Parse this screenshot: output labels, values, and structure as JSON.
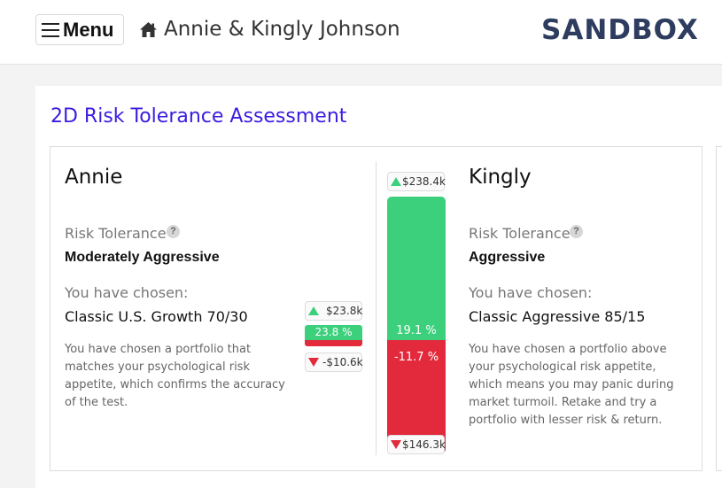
{
  "header": {
    "menu_label": "Menu",
    "client_name": "Annie & Kingly Johnson",
    "logo": "SANDBOX"
  },
  "page": {
    "title": "2D Risk Tolerance Assessment"
  },
  "persons": [
    {
      "name": "Annie",
      "risk_label": "Risk Tolerance",
      "risk_value": "Moderately Aggressive",
      "chosen_label": "You have chosen:",
      "portfolio": "Classic U.S. Growth 70/30",
      "description": "You have chosen a portfolio that matches your psychological risk appetite, which confirms the accuracy of the test.",
      "gain_amount": "$23.8k",
      "gain_pct": "23.8 %",
      "loss_amount": "-$10.6k"
    },
    {
      "name": "Kingly",
      "risk_label": "Risk Tolerance",
      "risk_value": "Aggressive",
      "chosen_label": "You have chosen:",
      "portfolio": "Classic Aggressive 85/15",
      "description": "You have chosen a portfolio above your psychological risk appetite, which means you may panic during market turmoil. Retake and try a portfolio with lesser risk & return.",
      "gain_amount": "$238.4k",
      "gain_pct": "19.1 %",
      "loss_pct": "-11.7 %",
      "loss_amount": "$146.3k",
      "gain_fraction": 0.559
    }
  ],
  "colors": {
    "accent_title": "#3a1de0",
    "logo": "#2e3d5f",
    "gain": "#3dd07c",
    "loss": "#e22a3c"
  },
  "icons": {
    "menu": "hamburger-icon",
    "home": "home-icon",
    "help": "question-circle-icon",
    "up": "triangle-up-icon",
    "down": "triangle-down-icon"
  }
}
